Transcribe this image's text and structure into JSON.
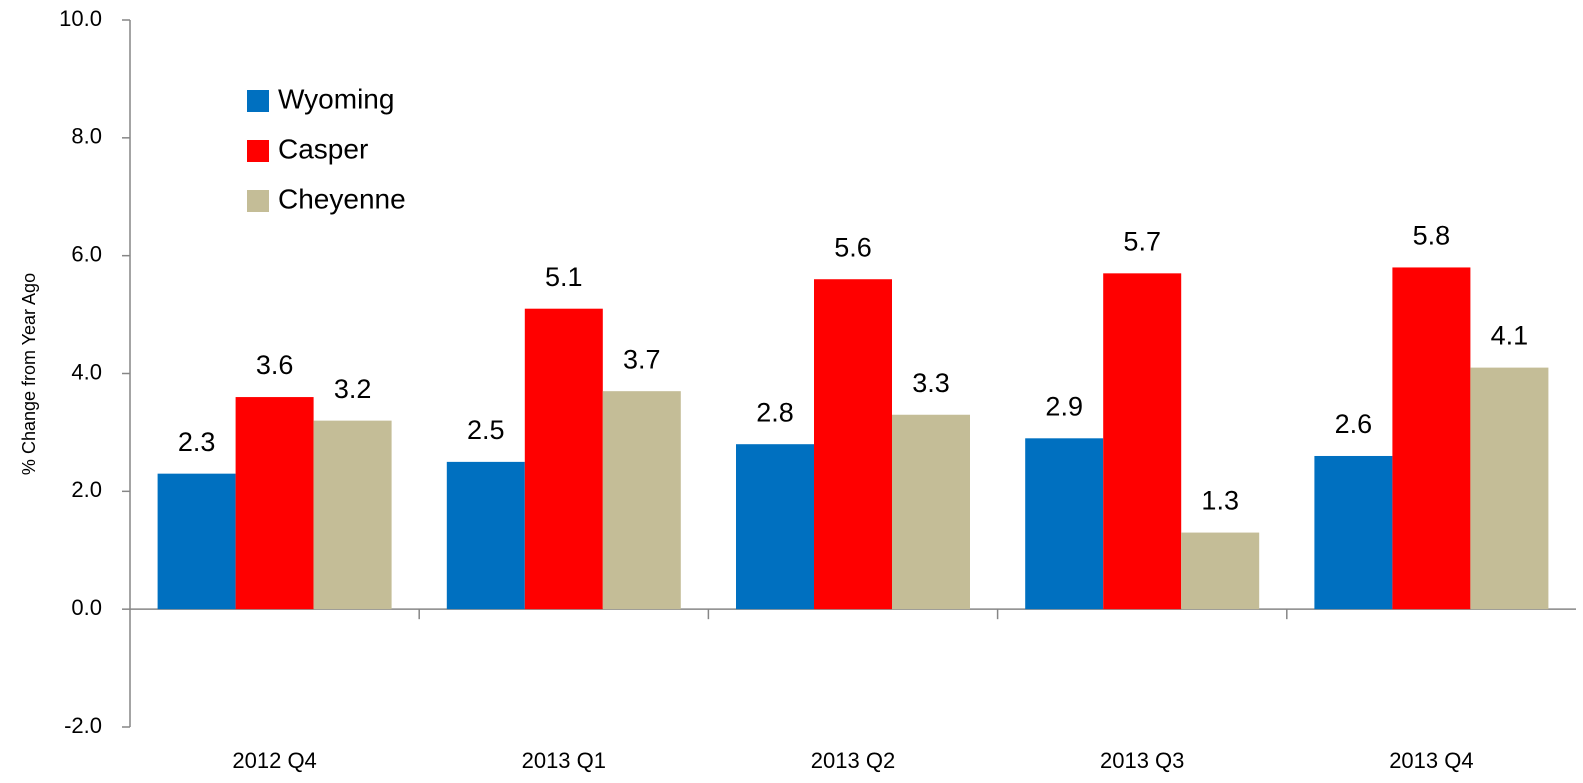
{
  "chart_data": {
    "type": "bar",
    "y_label": "% Change from Year Ago",
    "categories": [
      "2012 Q4",
      "2013 Q1",
      "2013 Q2",
      "2013 Q3",
      "2013 Q4"
    ],
    "series": [
      {
        "name": "Wyoming",
        "color": "#0070c0",
        "values": [
          2.3,
          2.5,
          2.8,
          2.9,
          2.6
        ]
      },
      {
        "name": "Casper",
        "color": "#ff0000",
        "values": [
          3.6,
          5.1,
          5.6,
          5.7,
          5.8
        ]
      },
      {
        "name": "Cheyenne",
        "color": "#c4bd97",
        "values": [
          3.2,
          3.7,
          3.3,
          1.3,
          4.1
        ]
      }
    ],
    "ylim": [
      -2,
      10
    ],
    "yticks": [
      {
        "value": -2,
        "label": "-2.0"
      },
      {
        "value": 0,
        "label": "0.0"
      },
      {
        "value": 2,
        "label": "2.0"
      },
      {
        "value": 4,
        "label": "4.0"
      },
      {
        "value": 6,
        "label": "6.0"
      },
      {
        "value": 8,
        "label": "8.0"
      },
      {
        "value": 10,
        "label": "10.0"
      }
    ],
    "legend": "top-left"
  }
}
